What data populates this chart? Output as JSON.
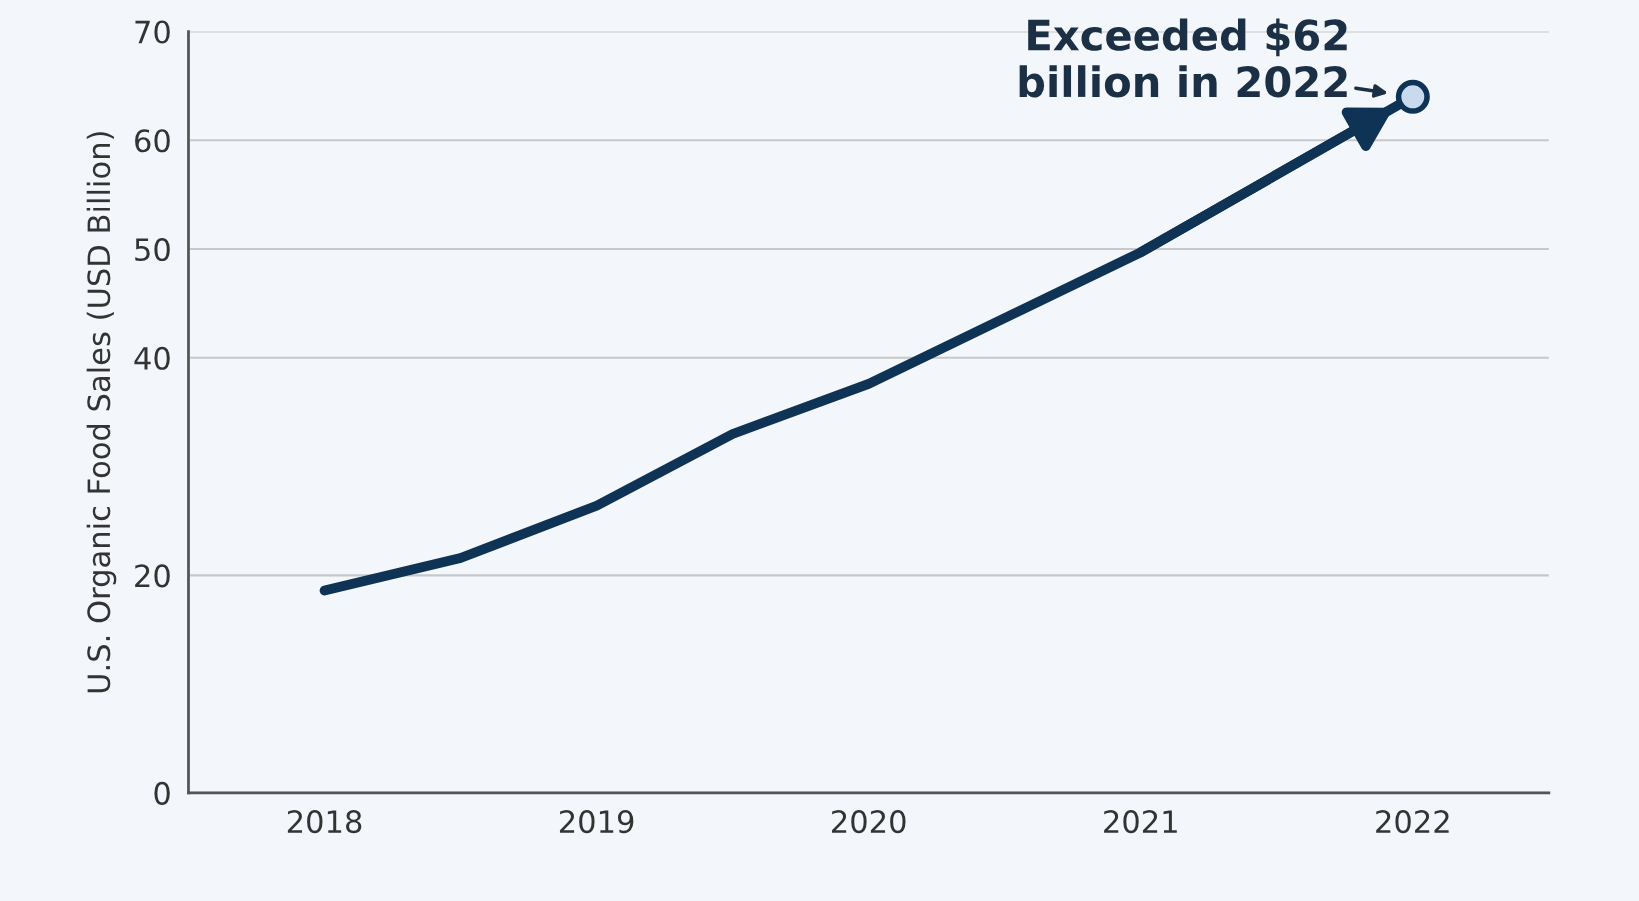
{
  "chart_data": {
    "type": "line",
    "ylabel": "U.S. Organic Food Sales (USD Billion)",
    "x": [
      2018,
      2018.5,
      2019,
      2019.5,
      2020,
      2021,
      2022
    ],
    "series": [
      {
        "color": "#0e3354",
        "values": [
          18.6,
          21.6,
          26.4,
          33.0,
          37.6,
          49.7,
          64
        ]
      },
      {
        "type": "scatter",
        "color": "#0e3354",
        "x": [
          2022
        ],
        "values": [
          64
        ],
        "marker": "circle"
      }
    ],
    "xlim": [
      2017.5,
      2022.5
    ],
    "xticks": [
      2018,
      2019,
      2020,
      2021,
      2022
    ],
    "ylim": [
      0,
      70
    ],
    "yticks": [
      0,
      20,
      40,
      50,
      60,
      70
    ],
    "grid": "y",
    "annotations": [
      {
        "text": "Exceeded $62\nbillion in 2022",
        "x": 2022,
        "y": 64
      }
    ]
  }
}
